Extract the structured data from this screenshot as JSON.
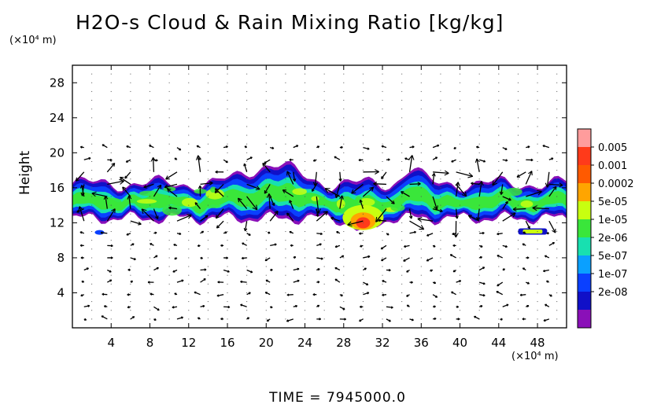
{
  "title": "H2O-s Cloud & Rain Mixing Ratio [kg/kg]",
  "y_unit": "(×10⁴ m)",
  "x_unit": "(×10⁴ m)",
  "time_label": "TIME  =  7945000.0",
  "chart_data": {
    "type": "heatmap",
    "title": "H2O-s Cloud & Rain Mixing Ratio [kg/kg]",
    "xlabel": "",
    "ylabel": "Height",
    "x_unit": "(×10⁴ m)",
    "y_unit": "(×10⁴ m)",
    "xlim": [
      0,
      51
    ],
    "ylim": [
      0,
      30
    ],
    "xticks": [
      4,
      8,
      12,
      16,
      20,
      24,
      28,
      32,
      36,
      40,
      44,
      48
    ],
    "yticks": [
      4,
      8,
      12,
      16,
      20,
      24,
      28
    ],
    "colorbar": {
      "labels": [
        "0.005",
        "0.001",
        "0.0002",
        "5e-05",
        "1e-05",
        "2e-06",
        "5e-07",
        "1e-07",
        "2e-08"
      ],
      "colors": [
        "#ff9c9c",
        "#ff3a1a",
        "#ff5a00",
        "#ffa500",
        "#c8ff10",
        "#3ae63a",
        "#18e0b0",
        "#0aa0ff",
        "#0a40ff",
        "#1010c8",
        "#8a10b8"
      ]
    },
    "layer": {
      "base_height": 12.5,
      "top_height": 16.5,
      "peak_x": 30,
      "peak_height": 12.2,
      "peak_value": "0.001",
      "secondary_patch_x": [
        46,
        49
      ],
      "secondary_patch_height": 11
    },
    "grid": true
  }
}
